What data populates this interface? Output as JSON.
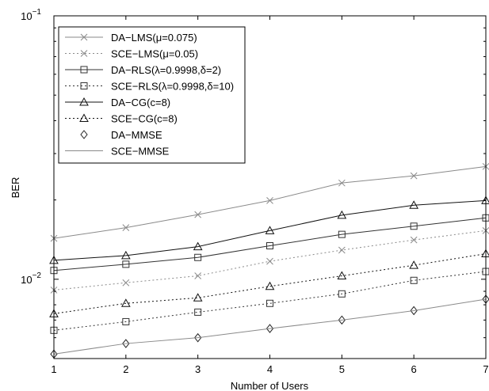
{
  "chart_data": {
    "type": "line",
    "title": "",
    "xlabel": "Number of Users",
    "ylabel": "BER",
    "x": [
      1,
      2,
      3,
      4,
      5,
      6,
      7
    ],
    "xlim": [
      1,
      7
    ],
    "ylim": [
      0.005,
      0.1
    ],
    "yscale": "log",
    "y_tick_labels": [
      {
        "value": 0.1,
        "base": "10",
        "exp": "−1"
      },
      {
        "value": 0.01,
        "base": "10",
        "exp": "−2"
      }
    ],
    "grid": false,
    "legend_position": "top-left",
    "series": [
      {
        "name": "DA−LMS(μ=0.075)",
        "color": "#8a8a8a",
        "line": "solid",
        "marker": "x",
        "values": [
          0.0143,
          0.0157,
          0.0176,
          0.0199,
          0.0232,
          0.0247,
          0.0268
        ]
      },
      {
        "name": "SCE−LMS(μ=0.05)",
        "color": "#8a8a8a",
        "line": "dotted",
        "marker": "x",
        "values": [
          0.0091,
          0.0097,
          0.0103,
          0.0117,
          0.0129,
          0.0141,
          0.0153
        ]
      },
      {
        "name": "DA−RLS(λ=0.9998,δ=2)",
        "color": "#333333",
        "line": "solid",
        "marker": "square",
        "values": [
          0.0108,
          0.0114,
          0.0121,
          0.0134,
          0.0148,
          0.0159,
          0.0171
        ]
      },
      {
        "name": "SCE−RLS(λ=0.9998,δ=10)",
        "color": "#333333",
        "line": "dotted",
        "marker": "square",
        "values": [
          0.0064,
          0.0069,
          0.0075,
          0.0081,
          0.0088,
          0.0099,
          0.0107
        ]
      },
      {
        "name": "DA−CG(c=8)",
        "color": "#111111",
        "line": "solid",
        "marker": "triangle",
        "values": [
          0.0118,
          0.0123,
          0.0133,
          0.0153,
          0.0175,
          0.0191,
          0.0199
        ]
      },
      {
        "name": "SCE−CG(c=8)",
        "color": "#111111",
        "line": "dotted",
        "marker": "triangle",
        "values": [
          0.0074,
          0.0081,
          0.0085,
          0.0094,
          0.0103,
          0.0113,
          0.0125
        ]
      },
      {
        "name": "DA−MMSE",
        "color": "#222222",
        "line": "none",
        "marker": "diamond",
        "values": [
          0.0052,
          0.0057,
          0.006,
          0.0065,
          0.007,
          0.0076,
          0.0084
        ]
      },
      {
        "name": "SCE−MMSE",
        "color": "#8a8a8a",
        "line": "solid",
        "marker": "none",
        "values": [
          0.0052,
          0.0057,
          0.006,
          0.0065,
          0.007,
          0.0076,
          0.0084
        ]
      }
    ]
  }
}
